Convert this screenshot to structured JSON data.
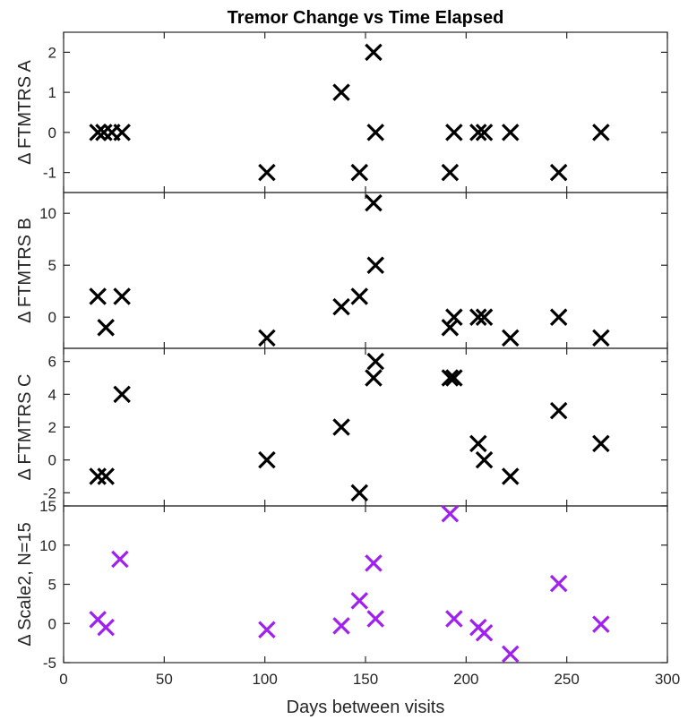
{
  "title": "Tremor Change vs Time Elapsed",
  "xlabel": "Days between visits",
  "chart_data": {
    "type": "scatter",
    "title": "Tremor Change vs Time Elapsed",
    "xlabel": "Days between visits",
    "xlim": [
      0,
      300
    ],
    "xticks": [
      0,
      50,
      100,
      150,
      200,
      250,
      300
    ],
    "x": [
      17,
      21,
      24,
      29,
      101,
      138,
      147,
      154,
      155,
      192,
      194,
      206,
      209,
      222,
      246,
      267
    ],
    "marker": "x",
    "grid": false,
    "panels": [
      {
        "ylabel": "Δ FTMTRS A",
        "ylim": [
          -1.5,
          2.5
        ],
        "yticks": [
          -1,
          0,
          1,
          2
        ],
        "color": "#000000",
        "points": [
          [
            17,
            0
          ],
          [
            20,
            0
          ],
          [
            24,
            0
          ],
          [
            29,
            0
          ],
          [
            101,
            -1
          ],
          [
            138,
            1
          ],
          [
            147,
            -1
          ],
          [
            154,
            2
          ],
          [
            155,
            0
          ],
          [
            192,
            -1
          ],
          [
            194,
            0
          ],
          [
            206,
            0
          ],
          [
            209,
            0
          ],
          [
            222,
            0
          ],
          [
            246,
            -1
          ],
          [
            267,
            0
          ]
        ]
      },
      {
        "ylabel": "Δ FTMTRS B",
        "ylim": [
          -3,
          12
        ],
        "yticks": [
          0,
          5,
          10
        ],
        "color": "#000000",
        "points": [
          [
            17,
            2
          ],
          [
            21,
            -1
          ],
          [
            29,
            2
          ],
          [
            101,
            -2
          ],
          [
            138,
            1
          ],
          [
            147,
            2
          ],
          [
            154,
            11
          ],
          [
            155,
            5
          ],
          [
            192,
            -1
          ],
          [
            194,
            0
          ],
          [
            206,
            0
          ],
          [
            209,
            0
          ],
          [
            222,
            -2
          ],
          [
            246,
            0
          ],
          [
            267,
            -2
          ]
        ]
      },
      {
        "ylabel": "Δ FTMTRS C",
        "ylim": [
          -2.8,
          6.8
        ],
        "yticks": [
          -2,
          0,
          2,
          4,
          6
        ],
        "color": "#000000",
        "points": [
          [
            17,
            -1
          ],
          [
            21,
            -1
          ],
          [
            29,
            4
          ],
          [
            101,
            0
          ],
          [
            138,
            2
          ],
          [
            147,
            -2
          ],
          [
            154,
            5
          ],
          [
            155,
            6
          ],
          [
            192,
            5
          ],
          [
            194,
            5
          ],
          [
            206,
            1
          ],
          [
            209,
            0
          ],
          [
            222,
            -1
          ],
          [
            246,
            3
          ],
          [
            267,
            1
          ]
        ]
      },
      {
        "ylabel": "Δ Scale2, N=15",
        "ylim": [
          -5,
          15
        ],
        "yticks": [
          -5,
          0,
          5,
          10,
          15
        ],
        "color": "#a020f0",
        "points": [
          [
            17,
            0.5
          ],
          [
            21,
            -0.5
          ],
          [
            28,
            8.2
          ],
          [
            101,
            -0.8
          ],
          [
            138,
            -0.3
          ],
          [
            147,
            2.9
          ],
          [
            154,
            7.7
          ],
          [
            155,
            0.6
          ],
          [
            192,
            14
          ],
          [
            194,
            0.6
          ],
          [
            206,
            -0.5
          ],
          [
            209,
            -1.2
          ],
          [
            222,
            -3.9
          ],
          [
            246,
            5.1
          ],
          [
            267,
            -0.1
          ]
        ]
      }
    ]
  }
}
